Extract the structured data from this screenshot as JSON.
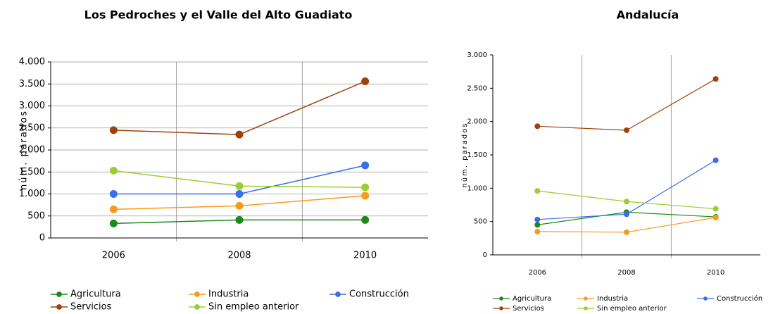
{
  "chart_data": [
    {
      "type": "line",
      "title": "Los Pedroches y el Valle del Alto Guadiato",
      "y_label": "núm. parados",
      "categories": [
        "2006",
        "2008",
        "2010"
      ],
      "series": [
        {
          "name": "Agricultura",
          "color": "#1a8a1a",
          "values": [
            330,
            410,
            410
          ]
        },
        {
          "name": "Industria",
          "color": "#f99a1c",
          "values": [
            650,
            730,
            960
          ]
        },
        {
          "name": "Construcción",
          "color": "#3a6ee8",
          "values": [
            1000,
            1000,
            1650
          ]
        },
        {
          "name": "Servicios",
          "color": "#a0410c",
          "values": [
            2450,
            2350,
            3560
          ]
        },
        {
          "name": "Sin empleo anterior",
          "color": "#9acd32",
          "values": [
            1530,
            1180,
            1150
          ]
        }
      ],
      "ylim": [
        0,
        4000
      ],
      "yticks": [
        0,
        500,
        {
          "value": 1000,
          "label": "1.000"
        },
        {
          "value": 1500,
          "label": "1.500"
        },
        {
          "value": 2000,
          "label": "2.000"
        },
        {
          "value": 2500,
          "label": "2.500"
        },
        {
          "value": 3000,
          "label": "3.000"
        },
        {
          "value": 3500,
          "label": "3.500"
        },
        {
          "value": 4000,
          "label": "4.000"
        }
      ],
      "grid": true
    },
    {
      "type": "line",
      "title": "Andalucía",
      "y_label": "núm. parados",
      "categories": [
        "2006",
        "2008",
        "2010"
      ],
      "series": [
        {
          "name": "Agricultura",
          "color": "#1a8a1a",
          "values": [
            450,
            640,
            570
          ]
        },
        {
          "name": "Industria",
          "color": "#f99a1c",
          "values": [
            350,
            340,
            560
          ]
        },
        {
          "name": "Construcción",
          "color": "#3a6ee8",
          "values": [
            530,
            610,
            1420
          ]
        },
        {
          "name": "Servicios",
          "color": "#a0410c",
          "values": [
            1930,
            1870,
            2640
          ]
        },
        {
          "name": "Sin empleo anterior",
          "color": "#9acd32",
          "values": [
            960,
            800,
            690
          ]
        }
      ],
      "ylim": [
        0,
        3000
      ],
      "yticks": [
        0,
        500,
        {
          "value": 1000,
          "label": "1.000"
        },
        {
          "value": 1500,
          "label": "1.500"
        },
        {
          "value": 2000,
          "label": "2.000"
        },
        {
          "value": 2500,
          "label": "2.500"
        },
        {
          "value": 3000,
          "label": "3.000"
        }
      ],
      "grid": false
    }
  ]
}
